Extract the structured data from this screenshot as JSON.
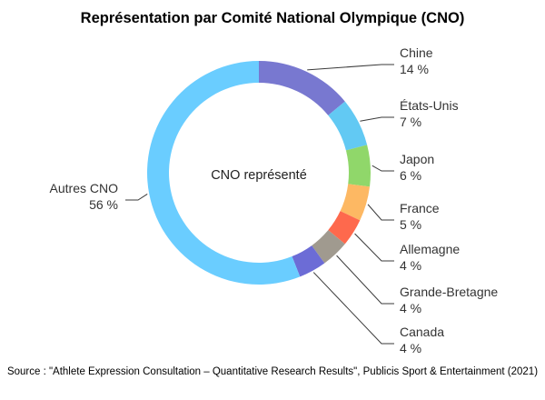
{
  "chart_data": {
    "type": "pie",
    "title": "Représentation par Comité National Olympique (CNO)",
    "center_label": "CNO représenté",
    "source": "Source : \"Athlete Expression Consultation – Quantitative Research Results\", Publicis Sport & Entertainment (2021)",
    "categories": [
      "Chine",
      "États-Unis",
      "Japon",
      "France",
      "Allemagne",
      "Grande-Bretagne",
      "Canada",
      "Autres CNO"
    ],
    "values": [
      14,
      7,
      6,
      5,
      4,
      4,
      4,
      56
    ],
    "value_labels": [
      "14 %",
      "7 %",
      "6 %",
      "5 %",
      "4 %",
      "4 %",
      "4 %",
      "56 %"
    ],
    "colors": [
      "#7878d0",
      "#62c9f3",
      "#90d76a",
      "#fdb863",
      "#fe694d",
      "#a09a8f",
      "#6c6cd6",
      "#6acdff"
    ],
    "legend": "none"
  }
}
